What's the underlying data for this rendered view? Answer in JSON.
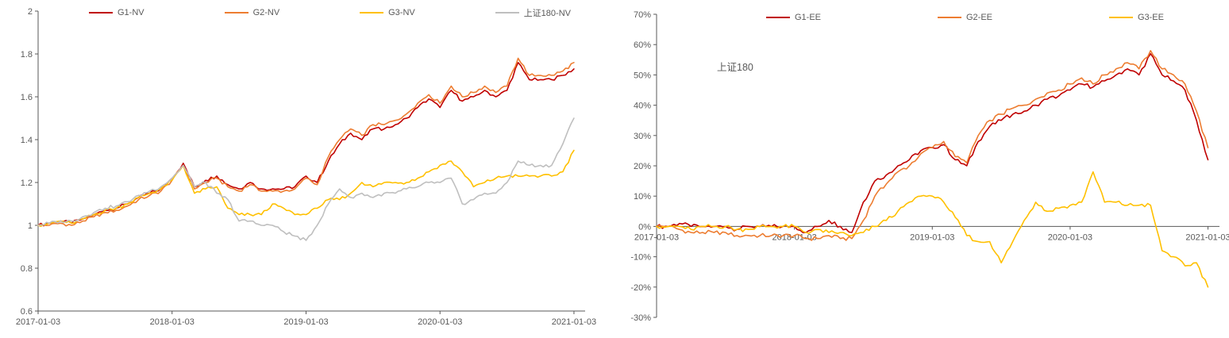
{
  "page": {
    "background": "#ffffff"
  },
  "chart_data": [
    {
      "name": "nv-chart",
      "type": "line",
      "title": "",
      "xlabel": "",
      "ylabel": "",
      "legend_position": "top",
      "grid": false,
      "x_unit": "months since 2017-01 (index); ticks are trading dates",
      "x_range": [
        0,
        49
      ],
      "y_range": [
        0.6,
        2
      ],
      "x_axis_at": 0.6,
      "noise": 0.008,
      "x_ticks": [
        {
          "v": 0,
          "label": "2017-01-03"
        },
        {
          "v": 12,
          "label": "2018-01-03"
        },
        {
          "v": 24,
          "label": "2019-01-03"
        },
        {
          "v": 36,
          "label": "2020-01-03"
        },
        {
          "v": 48,
          "label": "2021-01-03"
        }
      ],
      "y_ticks": [
        {
          "v": 0.6,
          "label": "0.6"
        },
        {
          "v": 0.8,
          "label": "0.8"
        },
        {
          "v": 1,
          "label": "1"
        },
        {
          "v": 1.2,
          "label": "1.2"
        },
        {
          "v": 1.4,
          "label": "1.4"
        },
        {
          "v": 1.6,
          "label": "1.6"
        },
        {
          "v": 1.8,
          "label": "1.8"
        },
        {
          "v": 2,
          "label": "2"
        }
      ],
      "series": [
        {
          "label": "G1-NV",
          "color": "#C00000",
          "values": [
            1.0,
            1.01,
            1.02,
            1.01,
            1.03,
            1.05,
            1.07,
            1.08,
            1.1,
            1.13,
            1.15,
            1.17,
            1.22,
            1.29,
            1.18,
            1.21,
            1.23,
            1.19,
            1.17,
            1.2,
            1.17,
            1.17,
            1.17,
            1.18,
            1.23,
            1.2,
            1.3,
            1.38,
            1.43,
            1.4,
            1.45,
            1.45,
            1.47,
            1.5,
            1.55,
            1.59,
            1.55,
            1.63,
            1.58,
            1.6,
            1.63,
            1.6,
            1.63,
            1.76,
            1.68,
            1.68,
            1.68,
            1.7,
            1.73
          ]
        },
        {
          "label": "G2-NV",
          "color": "#ED7D31",
          "values": [
            1.0,
            1.0,
            1.01,
            1.0,
            1.02,
            1.04,
            1.06,
            1.07,
            1.09,
            1.12,
            1.14,
            1.16,
            1.21,
            1.28,
            1.17,
            1.2,
            1.22,
            1.18,
            1.16,
            1.19,
            1.16,
            1.16,
            1.16,
            1.17,
            1.22,
            1.19,
            1.32,
            1.4,
            1.45,
            1.42,
            1.47,
            1.47,
            1.49,
            1.52,
            1.57,
            1.61,
            1.57,
            1.65,
            1.6,
            1.62,
            1.65,
            1.62,
            1.65,
            1.78,
            1.7,
            1.7,
            1.7,
            1.72,
            1.76
          ]
        },
        {
          "label": "G3-NV",
          "color": "#FFC000",
          "values": [
            1.0,
            1.01,
            1.02,
            1.01,
            1.03,
            1.05,
            1.07,
            1.08,
            1.1,
            1.13,
            1.15,
            1.17,
            1.21,
            1.28,
            1.15,
            1.17,
            1.18,
            1.08,
            1.05,
            1.05,
            1.05,
            1.1,
            1.08,
            1.05,
            1.05,
            1.08,
            1.12,
            1.12,
            1.15,
            1.2,
            1.18,
            1.2,
            1.2,
            1.2,
            1.22,
            1.25,
            1.28,
            1.3,
            1.25,
            1.18,
            1.2,
            1.22,
            1.23,
            1.23,
            1.23,
            1.23,
            1.23,
            1.25,
            1.35
          ]
        },
        {
          "label": "上证180-NV",
          "color": "#BFBFBF",
          "values": [
            1.0,
            1.01,
            1.02,
            1.02,
            1.04,
            1.06,
            1.08,
            1.09,
            1.11,
            1.14,
            1.16,
            1.18,
            1.22,
            1.28,
            1.18,
            1.2,
            1.15,
            1.12,
            1.02,
            1.02,
            1.0,
            1.0,
            0.97,
            0.95,
            0.93,
            1.0,
            1.1,
            1.17,
            1.13,
            1.15,
            1.13,
            1.15,
            1.15,
            1.17,
            1.18,
            1.2,
            1.2,
            1.22,
            1.1,
            1.12,
            1.15,
            1.15,
            1.2,
            1.3,
            1.28,
            1.28,
            1.28,
            1.38,
            1.5
          ]
        }
      ]
    },
    {
      "name": "ee-chart",
      "type": "line",
      "title": "",
      "xlabel": "",
      "ylabel": "",
      "legend_position": "top",
      "grid": false,
      "x_unit": "months since 2017-01 (index); ticks are trading dates",
      "x_range": [
        0,
        49
      ],
      "y_range": [
        -30,
        70
      ],
      "x_axis_at": 0,
      "noise": 0.7,
      "annotation": {
        "text": "上证180"
      },
      "x_ticks": [
        {
          "v": 0,
          "label": "2017-01-03"
        },
        {
          "v": 12,
          "label": "2018-01-03"
        },
        {
          "v": 24,
          "label": "2019-01-03"
        },
        {
          "v": 36,
          "label": "2020-01-03"
        },
        {
          "v": 48,
          "label": "2021-01-03"
        }
      ],
      "y_ticks": [
        {
          "v": 70,
          "label": "70%"
        },
        {
          "v": 60,
          "label": "60%"
        },
        {
          "v": 50,
          "label": "50%"
        },
        {
          "v": 40,
          "label": "40%"
        },
        {
          "v": 30,
          "label": "30%"
        },
        {
          "v": 20,
          "label": "20%"
        },
        {
          "v": 10,
          "label": "10%"
        },
        {
          "v": 0,
          "label": "0%"
        },
        {
          "v": -10,
          "label": "-10%"
        },
        {
          "v": -20,
          "label": "-20%"
        },
        {
          "v": -30,
          "label": "-30%"
        }
      ],
      "series": [
        {
          "label": "G1-EE",
          "color": "#C00000",
          "values": [
            0,
            0,
            1,
            0,
            0,
            0,
            0,
            -1,
            0,
            0,
            0,
            0,
            0,
            -2,
            0,
            2,
            0,
            -2,
            8,
            15,
            17,
            20,
            22,
            25,
            26,
            27,
            22,
            20,
            28,
            33,
            35,
            37,
            38,
            40,
            42,
            43,
            45,
            47,
            46,
            48,
            50,
            52,
            50,
            57,
            50,
            48,
            45,
            35,
            22
          ]
        },
        {
          "label": "G2-EE",
          "color": "#ED7D31",
          "values": [
            0,
            0,
            -1,
            -2,
            -2,
            -2,
            -2,
            -3,
            -3,
            -3,
            -3,
            -3,
            -3,
            -4,
            -4,
            -3,
            -4,
            -4,
            2,
            10,
            14,
            18,
            20,
            24,
            26,
            28,
            23,
            21,
            30,
            35,
            37,
            39,
            40,
            42,
            44,
            45,
            47,
            49,
            47,
            50,
            52,
            54,
            52,
            58,
            52,
            50,
            47,
            38,
            26
          ]
        },
        {
          "label": "G3-EE",
          "color": "#FFC000",
          "values": [
            0,
            0,
            0,
            -1,
            0,
            0,
            0,
            -1,
            -1,
            0,
            0,
            0,
            0,
            -2,
            -1,
            -2,
            -2,
            -3,
            -2,
            0,
            2,
            5,
            8,
            10,
            10,
            8,
            3,
            -3,
            -5,
            -5,
            -12,
            -5,
            2,
            8,
            5,
            6,
            7,
            8,
            18,
            8,
            8,
            7,
            7,
            7,
            -8,
            -10,
            -13,
            -12,
            -20
          ]
        }
      ]
    }
  ]
}
